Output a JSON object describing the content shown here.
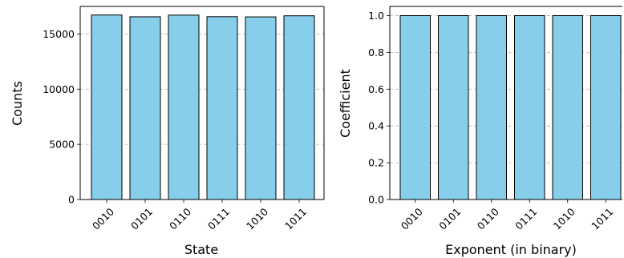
{
  "chart_data": [
    {
      "type": "bar",
      "categories": [
        "0010",
        "0101",
        "0110",
        "0111",
        "1010",
        "1011"
      ],
      "values": [
        16720,
        16560,
        16710,
        16570,
        16550,
        16650
      ],
      "xlabel": "State",
      "ylabel": "Counts",
      "ylim": [
        0,
        17500
      ],
      "yticks": [
        0,
        5000,
        10000,
        15000
      ],
      "ytick_labels": [
        "0",
        "5000",
        "10000",
        "15000"
      ],
      "grid": "y-dashed",
      "bar_color": "#87ceeb",
      "edge_color": "#000000"
    },
    {
      "type": "bar",
      "categories": [
        "0010",
        "0101",
        "0110",
        "0111",
        "1010",
        "1011"
      ],
      "values": [
        1.0,
        1.0,
        1.0,
        1.0,
        1.0,
        1.0
      ],
      "xlabel": "Exponent (in binary)",
      "ylabel": "Coefficient",
      "ylim": [
        0,
        1.05
      ],
      "yticks": [
        0,
        0.2,
        0.4,
        0.6,
        0.8,
        1.0
      ],
      "ytick_labels": [
        "0.0",
        "0.2",
        "0.4",
        "0.6",
        "0.8",
        "1.0"
      ],
      "grid": "y-dashed",
      "bar_color": "#87ceeb",
      "edge_color": "#000000"
    }
  ]
}
